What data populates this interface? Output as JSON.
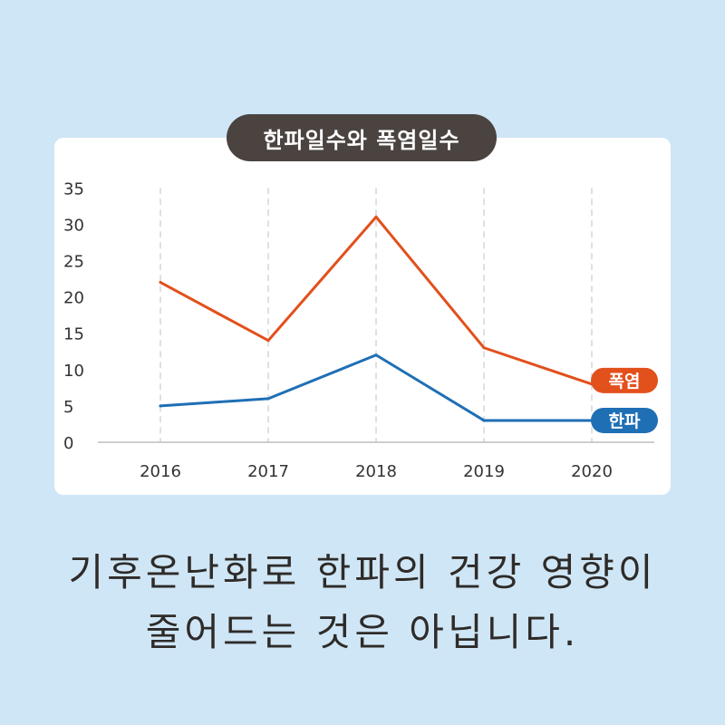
{
  "title": "한파일수와 폭염일수",
  "caption": {
    "line1": "기후온난화로 한파의 건강 영향이",
    "line2": "줄어드는 것은 아닙니다."
  },
  "colors": {
    "background": "#cfe6f6",
    "heatwave": "#e2501c",
    "coldwave": "#1f6fb5",
    "title_bg": "#4a4340"
  },
  "chart_data": {
    "type": "line",
    "x": [
      "2016",
      "2017",
      "2018",
      "2019",
      "2020"
    ],
    "ylim": [
      0,
      35
    ],
    "yticks": [
      0,
      5,
      10,
      15,
      20,
      25,
      30,
      35
    ],
    "grid": "vertical-dashed",
    "title": "한파일수와 폭염일수",
    "series": [
      {
        "name": "폭염",
        "color": "#e2501c",
        "values": [
          22,
          14,
          31,
          13,
          8
        ]
      },
      {
        "name": "한파",
        "color": "#1f6fb5",
        "values": [
          5,
          6,
          12,
          3,
          3
        ]
      }
    ]
  }
}
